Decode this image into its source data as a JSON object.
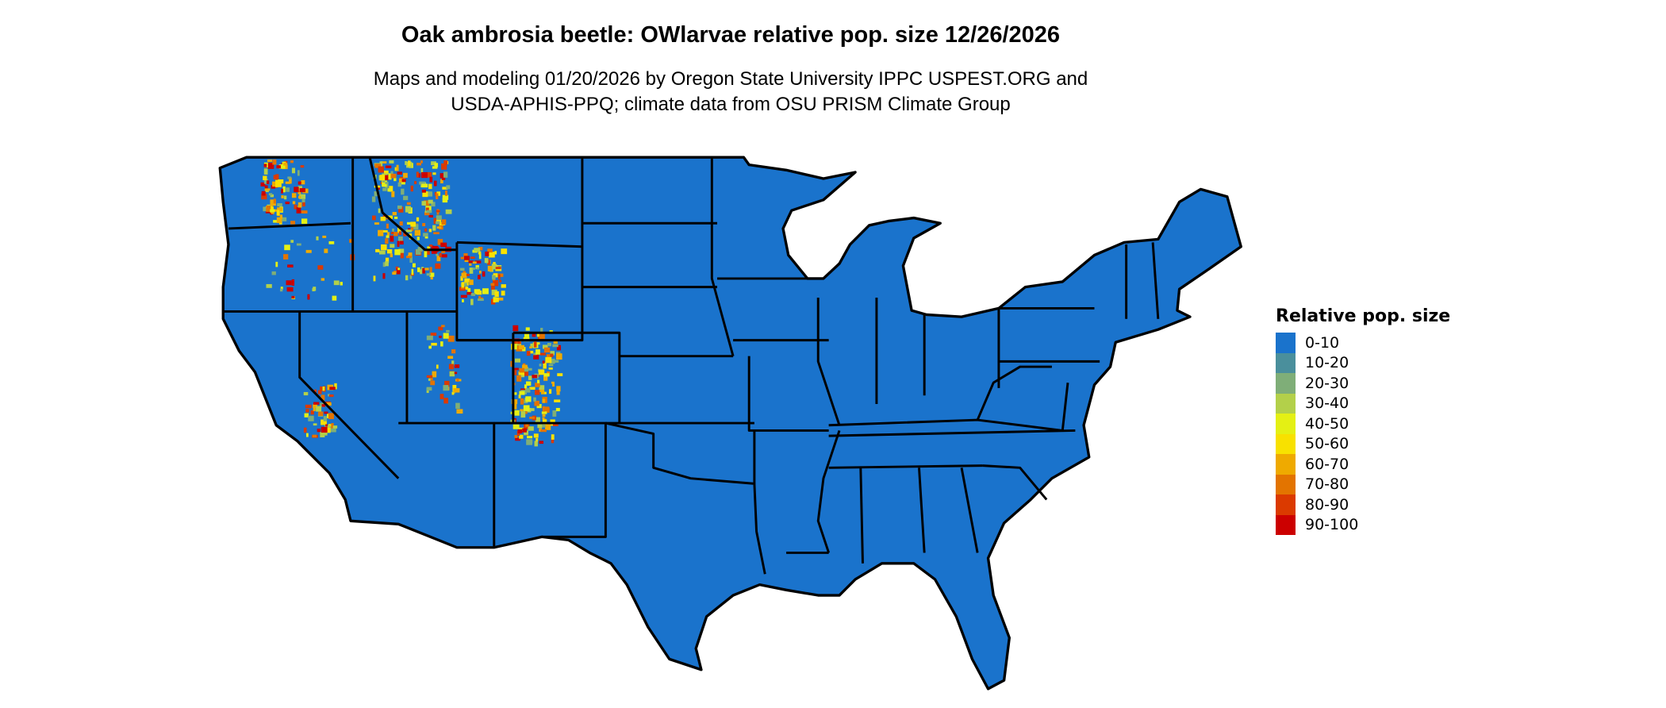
{
  "title": "Oak ambrosia beetle: OWlarvae relative pop. size 12/26/2026",
  "subtitle_line1": "Maps and modeling 01/20/2026 by Oregon State University IPPC USPEST.ORG and",
  "subtitle_line2": "USDA-APHIS-PPQ; climate data from OSU PRISM Climate Group",
  "map": {
    "region": "Contiguous United States",
    "base_color": "#1a73cc",
    "border_color": "#000000"
  },
  "legend": {
    "title": "Relative pop. size",
    "items": [
      {
        "label": "0-10",
        "color": "#1a73cc"
      },
      {
        "label": "10-20",
        "color": "#4a8f9c"
      },
      {
        "label": "20-30",
        "color": "#7fae78"
      },
      {
        "label": "30-40",
        "color": "#b3d04a"
      },
      {
        "label": "40-50",
        "color": "#e4f014"
      },
      {
        "label": "50-60",
        "color": "#f8e100"
      },
      {
        "label": "60-70",
        "color": "#efaa00"
      },
      {
        "label": "70-80",
        "color": "#e37400"
      },
      {
        "label": "80-90",
        "color": "#db3a00"
      },
      {
        "label": "90-100",
        "color": "#cc0000"
      }
    ]
  }
}
